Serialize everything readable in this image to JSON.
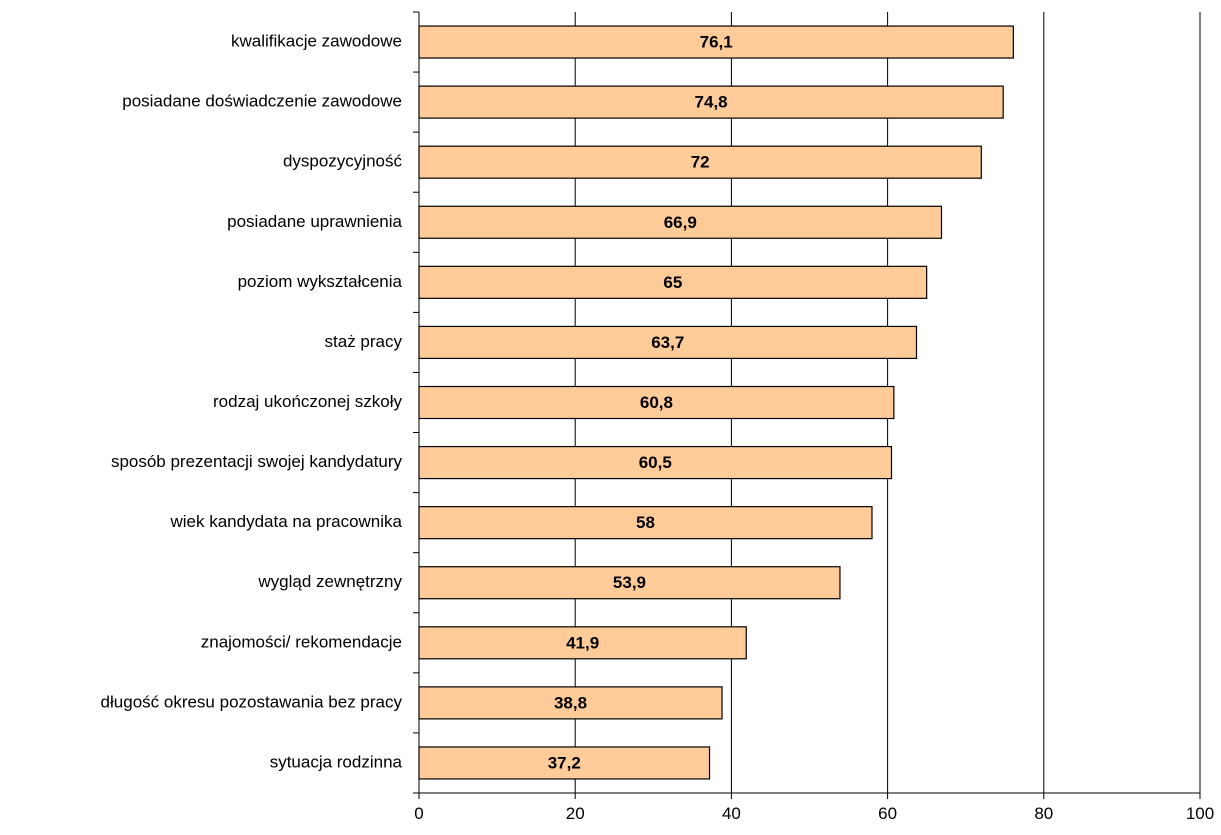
{
  "chart_data": {
    "type": "bar",
    "orientation": "horizontal",
    "categories": [
      "kwalifikacje zawodowe",
      "posiadane doświadczenie zawodowe",
      "dyspozycyjność",
      "posiadane uprawnienia",
      "poziom wykształcenia",
      "staż pracy",
      "rodzaj ukończonej szkoły",
      "sposób prezentacji swojej kandydatury",
      "wiek kandydata na pracownika",
      "wygląd zewnętrzny",
      "znajomości/ rekomendacje",
      "długość okresu pozostawania bez pracy",
      "sytuacja rodzinna"
    ],
    "values": [
      76.1,
      74.8,
      72,
      66.9,
      65,
      63.7,
      60.8,
      60.5,
      58,
      53.9,
      41.9,
      38.8,
      37.2
    ],
    "value_labels": [
      "76,1",
      "74,8",
      "72",
      "66,9",
      "65",
      "63,7",
      "60,8",
      "60,5",
      "58",
      "53,9",
      "41,9",
      "38,8",
      "37,2"
    ],
    "xlim": [
      0,
      100
    ],
    "xticks": [
      0,
      20,
      40,
      60,
      80,
      100
    ],
    "xtick_labels": [
      "0",
      "20",
      "40",
      "60",
      "80",
      "100"
    ],
    "title": "",
    "xlabel": "",
    "ylabel": "",
    "grid": "vertical",
    "legend": "none",
    "bar_color": "#FFCC99",
    "bar_edge_color": "#000000"
  }
}
